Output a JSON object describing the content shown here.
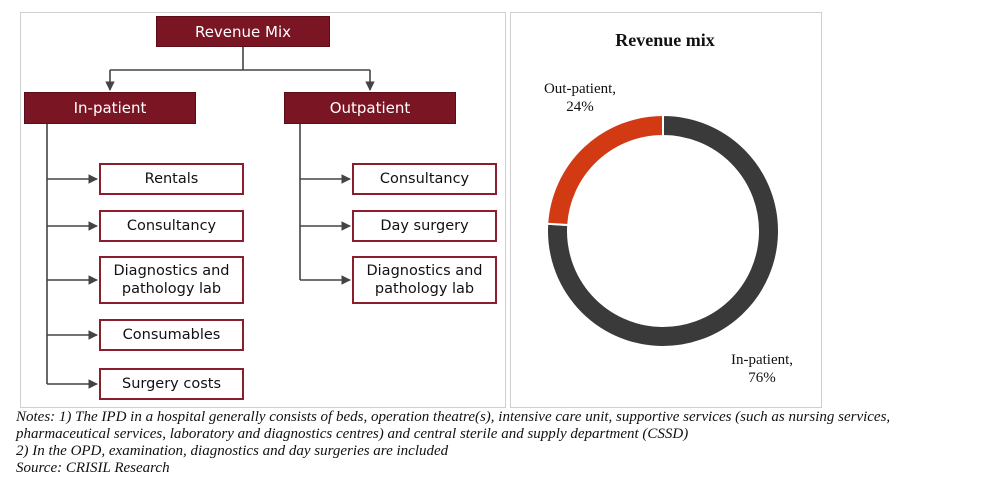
{
  "diagram": {
    "root": "Revenue Mix",
    "inpatient": {
      "title": "In-patient",
      "items": [
        "Rentals",
        "Consultancy",
        "Diagnostics and pathology lab",
        "Consumables",
        "Surgery costs"
      ]
    },
    "outpatient": {
      "title": "Outpatient",
      "items": [
        "Consultancy",
        "Day surgery",
        "Diagnostics and pathology lab"
      ]
    }
  },
  "chart_data": {
    "type": "pie",
    "title": "Revenue mix",
    "donut": true,
    "slices": [
      {
        "label": "In-patient,",
        "value_label": "76%",
        "value": 76,
        "color": "#3a3a3a"
      },
      {
        "label": "Out-patient,",
        "value_label": "24%",
        "value": 24,
        "color": "#d23a14"
      }
    ]
  },
  "notes": {
    "line1": "Notes: 1) The IPD in a hospital generally consists of beds, operation theatre(s), intensive care unit, supportive services (such as nursing services,",
    "line2": "pharmaceutical services, laboratory and diagnostics centres) and central sterile and supply department (CSSD)",
    "line3": "2) In the OPD, examination, diagnostics and day surgeries are included",
    "line4": "Source: CRISIL Research"
  }
}
